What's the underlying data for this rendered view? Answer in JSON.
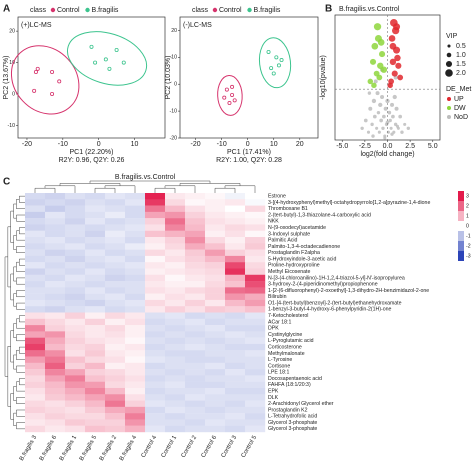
{
  "chart_data": [
    {
      "type": "scatter",
      "panel": "A",
      "legend_title": "class",
      "annotation": "(+)LC-MS",
      "xlabel": "PC1 (22.20%)",
      "ylabel": "PC2 (13.67%)",
      "note": "R2Y: 0.96, Q2Y: 0.26",
      "xlim": [
        -22.5,
        18.5
      ],
      "ylim": [
        -14,
        24.5
      ],
      "xticks": [
        -20,
        -10,
        0,
        10
      ],
      "yticks": [
        -10,
        0,
        10,
        20
      ],
      "ellipses": true,
      "series": [
        {
          "name": "Control",
          "color": "#d6336c",
          "x": [
            -17,
            -17.5,
            -13,
            -11,
            -13,
            -18
          ],
          "values": [
            8,
            7,
            7,
            4,
            0,
            1
          ]
        },
        {
          "name": "B.fragilis",
          "color": "#3cc48e",
          "x": [
            -2,
            2,
            5,
            7,
            3,
            -1
          ],
          "values": [
            15,
            11,
            14,
            10,
            8,
            10
          ]
        }
      ]
    },
    {
      "type": "scatter",
      "legend_title": "class",
      "annotation": "(-)LC-MS",
      "xlabel": "PC1 (17.41%)",
      "ylabel": "PC2 (10.03%)",
      "note": "R2Y: 1.00, Q2Y: 0.28",
      "xlim": [
        -26,
        27
      ],
      "ylim": [
        -20,
        25
      ],
      "xticks": [
        -20,
        -10,
        0,
        10,
        20
      ],
      "yticks": [
        -20,
        -10,
        0,
        10,
        20
      ],
      "ellipses": true,
      "series": [
        {
          "name": "Control",
          "color": "#d6336c",
          "x": [
            -8,
            -6,
            -7,
            -5,
            -9,
            -6
          ],
          "values": [
            -2,
            -4,
            -7,
            -6,
            -5,
            -1
          ]
        },
        {
          "name": "B.fragilis",
          "color": "#3cc48e",
          "x": [
            8,
            11,
            12,
            9,
            13,
            10
          ],
          "values": [
            12,
            10,
            7,
            6,
            9,
            4
          ]
        }
      ]
    },
    {
      "type": "volcano",
      "panel": "B",
      "title": "B.fragilis.vs.Control",
      "xlabel": "log2(fold change)",
      "ylabel": "-log10(pvalue)",
      "xlim": [
        -5.8,
        5.8
      ],
      "ylim": [
        0,
        3.2
      ],
      "xticks": [
        {
          "value": -5,
          "label": "-5.0"
        },
        -2.5,
        {
          "value": 0,
          "label": "0.0"
        },
        2.5,
        {
          "value": 5,
          "label": "5.0"
        }
      ],
      "hline": 1.3,
      "vline": 0,
      "size_title": "VIP",
      "size_legend": [
        0.5,
        {
          "value": 1,
          "label": "1.0"
        },
        1.5,
        {
          "value": 2,
          "label": "2.0"
        }
      ],
      "color_title": "DE_Met",
      "series": [
        {
          "name": "UP",
          "color": "#e0282e",
          "x": [
            0.4,
            0.6,
            0.8,
            1.0,
            1.2,
            0.5,
            0.9,
            1.4,
            0.7,
            1.1,
            0.3,
            1.0,
            0.6
          ],
          "values": [
            1.5,
            2.0,
            1.7,
            2.3,
            1.9,
            2.6,
            2.8,
            1.6,
            3.0,
            2.1,
            1.4,
            2.9,
            2.4
          ],
          "sizes": [
            1.4,
            1.6,
            1.5,
            1.8,
            1.5,
            1.7,
            1.9,
            1.4,
            2.0,
            1.6,
            1.3,
            1.8,
            1.7
          ]
        },
        {
          "name": "DW",
          "color": "#8ed63c",
          "x": [
            -1.9,
            -1.6,
            -1.4,
            -1.2,
            -1.0,
            -0.8,
            -0.6,
            -1.5,
            -0.9,
            -0.4,
            -1.1,
            -0.7
          ],
          "values": [
            1.5,
            2.0,
            2.4,
            1.7,
            2.6,
            1.9,
            2.2,
            1.4,
            1.6,
            1.8,
            2.9,
            2.5
          ],
          "sizes": [
            1.3,
            1.5,
            1.7,
            1.4,
            1.8,
            1.6,
            1.5,
            1.3,
            1.4,
            1.6,
            1.9,
            1.7
          ]
        },
        {
          "name": "NoD",
          "color": "#bdbdbd",
          "x": [
            -2.8,
            -2.4,
            -2.1,
            -1.9,
            -1.7,
            -1.5,
            -1.4,
            -1.2,
            -1.1,
            -1.0,
            -0.9,
            -0.8,
            -0.7,
            -0.6,
            -0.5,
            -0.4,
            -0.3,
            -0.2,
            -0.1,
            0.0,
            0.1,
            0.2,
            0.3,
            0.4,
            0.5,
            0.6,
            0.7,
            0.8,
            0.9,
            1.0,
            1.2,
            1.4,
            1.6,
            1.9,
            2.3,
            -1.3,
            -0.6,
            0.2,
            0.9,
            -2.0,
            -0.3,
            0.5,
            1.1,
            -1.6,
            0.0
          ],
          "values": [
            0.3,
            0.5,
            0.2,
            0.8,
            0.4,
            1.0,
            0.6,
            0.3,
            1.2,
            0.7,
            0.2,
            0.9,
            0.5,
            1.1,
            0.3,
            0.6,
            0.1,
            0.8,
            0.4,
            1.0,
            0.2,
            0.7,
            0.5,
            0.3,
            0.9,
            0.6,
            0.2,
            1.1,
            0.4,
            0.8,
            0.3,
            0.6,
            0.2,
            0.4,
            0.3,
            1.5,
            1.8,
            1.4,
            1.6,
            1.2,
            0.05,
            0.15,
            0.35,
            0.1,
            0.45
          ],
          "sizes": [
            0.6,
            0.7,
            0.5,
            0.8,
            0.6,
            0.9,
            0.7,
            0.5,
            0.8,
            0.6,
            0.5,
            0.9,
            0.7,
            0.8,
            0.6,
            0.7,
            0.5,
            0.8,
            0.6,
            0.9,
            0.5,
            0.7,
            0.6,
            0.5,
            0.8,
            0.7,
            0.5,
            0.9,
            0.6,
            0.8,
            0.5,
            0.7,
            0.6,
            0.5,
            0.6,
            0.8,
            0.9,
            0.7,
            0.8,
            0.6,
            0.5,
            0.6,
            0.5,
            0.6,
            0.7
          ]
        }
      ]
    },
    {
      "type": "heatmap",
      "panel": "C",
      "title": "B.fragilis.vs.Control",
      "colorlim": [
        -3,
        3
      ],
      "colorticks": [
        3,
        2,
        1,
        0,
        -1,
        -2,
        -3
      ],
      "colors": [
        "#2c44b8",
        "#ffffff",
        "#e31a4b"
      ],
      "columns": [
        "B.fragilis 3",
        "B.fragilis 6",
        "B.fragilis 1",
        "B.fragilis 5",
        "B.fragilis 2",
        "B.fragilis 4",
        "Control 4",
        "Control 1",
        "Control 2",
        "Control 6",
        "Control 3",
        "Control 5"
      ],
      "rows": [
        "Estrone",
        "3-[(4-hydroxyphenyl)methyl]-octahydropyrrolo[1,2-a]pyrazine-1,4-dione",
        "Thromboxane B1",
        "2-(tert-butyl)-1,3-thiazolane-4-carboxylic acid",
        "NKK",
        "N-(9-oxodecyl)acetamide",
        "3-Indoxyl sulphate",
        "Palmitic Acid",
        "Palmito-1,3-4-octadecadienone",
        "Prostaglandin F2alpha",
        "5-Hydroxyindole-3-acetic acid",
        "Proline-hydroxyproline",
        "Methyl Eicosenate",
        "N-[3-(4-chloroanilino)-1H-1,2,4-triazol-5-yl]-N'-isopropylurea",
        "3-hydroxy-2-(4-piperidinomethyl)propiophenone",
        "1-[2-(6-difluorophenyl)-2-oxoethyl]-1,3-dihydro-2H-benzimidazol-2-one",
        "Bilirubin",
        "O1-[4-(tert-butyl)benzoyl]-2-(tert-butyl)ethanehydroxamate",
        "1-benzyl-3-butyl-4-hydroxy-6-phenylpyridin-2(1H)-one",
        "7-Ketocholesterol",
        "ACar 18:1",
        "DPK",
        "Cystinylglycine",
        "L-Pyroglutamic acid",
        "Corticosterone",
        "Methylmalonate",
        "L-Tyrosine",
        "Cortisone",
        "LPE 18:1",
        "Docosapentaenoic acid",
        "FAHFA (18:1/20:3)",
        "EPK",
        "DLK",
        "2-Arachidonyl Glycerol ether",
        "Prostaglandin K2",
        "L-Tetrahydrofolic acid",
        "Glycerol 3-phosphate",
        "Glycerol 3-phosphate"
      ],
      "values": [
        [
          -0.6,
          -0.7,
          -0.5,
          -0.6,
          -0.4,
          -0.5,
          2.9,
          0.3,
          0.2,
          0.1,
          -0.2,
          0.0
        ],
        [
          -0.7,
          -0.6,
          -0.7,
          -0.5,
          -0.6,
          -0.4,
          2.6,
          0.5,
          0.1,
          0.2,
          0.3,
          -0.1
        ],
        [
          -0.5,
          -0.8,
          -0.6,
          -0.4,
          -0.5,
          -0.6,
          1.8,
          0.9,
          0.4,
          0.2,
          0.0,
          0.5
        ],
        [
          -0.8,
          -0.4,
          -0.6,
          -0.5,
          -0.3,
          -0.6,
          1.2,
          1.4,
          0.6,
          0.3,
          0.2,
          0.1
        ],
        [
          -0.6,
          -0.5,
          -0.7,
          -0.4,
          -0.6,
          -0.5,
          0.6,
          1.9,
          0.8,
          0.4,
          0.3,
          0.2
        ],
        [
          -0.7,
          -0.6,
          -0.5,
          -0.6,
          -0.5,
          -0.4,
          0.4,
          1.6,
          0.9,
          0.3,
          0.5,
          0.4
        ],
        [
          -0.4,
          -0.6,
          -0.5,
          -0.7,
          -0.3,
          -0.5,
          0.8,
          1.0,
          1.2,
          0.2,
          0.4,
          0.1
        ],
        [
          -0.5,
          -0.4,
          -0.6,
          -0.5,
          -0.4,
          -0.6,
          0.3,
          0.6,
          1.5,
          0.5,
          0.2,
          0.6
        ],
        [
          -0.6,
          -0.5,
          -0.4,
          -0.6,
          -0.5,
          -0.3,
          0.2,
          0.5,
          1.1,
          0.8,
          0.3,
          0.7
        ],
        [
          -0.5,
          -0.7,
          -0.6,
          -0.4,
          -0.6,
          -0.5,
          0.5,
          0.3,
          0.7,
          1.3,
          0.6,
          0.4
        ],
        [
          -0.6,
          -0.5,
          -0.7,
          -0.5,
          -0.4,
          -0.6,
          0.1,
          0.4,
          0.6,
          0.9,
          1.6,
          0.3
        ],
        [
          -0.4,
          -0.6,
          -0.5,
          -0.6,
          -0.5,
          -0.4,
          0.3,
          0.2,
          0.5,
          0.6,
          2.4,
          0.5
        ],
        [
          -0.7,
          -0.5,
          -0.6,
          -0.4,
          -0.6,
          -0.5,
          0.2,
          0.3,
          0.4,
          0.5,
          2.7,
          0.6
        ],
        [
          -0.5,
          -0.6,
          -0.4,
          -0.5,
          -0.7,
          -0.6,
          0.4,
          0.1,
          0.3,
          0.4,
          1.0,
          2.6
        ],
        [
          -0.6,
          -0.4,
          -0.5,
          -0.6,
          -0.5,
          -0.5,
          0.3,
          0.2,
          0.2,
          0.5,
          0.8,
          2.3
        ],
        [
          -0.5,
          -0.5,
          -0.6,
          -0.4,
          -0.6,
          -0.5,
          0.4,
          0.3,
          0.5,
          0.6,
          1.9,
          2.0
        ],
        [
          -0.5,
          -0.6,
          -0.7,
          -0.5,
          -0.4,
          -0.6,
          0.2,
          0.4,
          0.3,
          0.6,
          1.4,
          1.1
        ],
        [
          -0.4,
          -0.5,
          -0.6,
          -0.7,
          -0.5,
          -0.4,
          0.5,
          0.3,
          0.6,
          0.3,
          0.9,
          1.3
        ],
        [
          -0.6,
          -0.7,
          -0.5,
          -0.4,
          -0.6,
          -0.5,
          0.3,
          0.6,
          0.4,
          0.7,
          0.6,
          0.8
        ],
        [
          0.4,
          0.3,
          0.6,
          0.2,
          0.5,
          0.3,
          -0.5,
          -0.4,
          -0.6,
          -0.5,
          -0.6,
          -0.4
        ],
        [
          0.8,
          0.5,
          0.3,
          0.6,
          0.2,
          0.4,
          -0.6,
          -0.5,
          -0.4,
          -0.6,
          -0.5,
          -0.5
        ],
        [
          1.6,
          0.6,
          0.4,
          0.3,
          0.5,
          0.2,
          -0.5,
          -0.6,
          -0.5,
          -0.4,
          -0.6,
          -0.6
        ],
        [
          1.2,
          1.4,
          0.5,
          0.3,
          0.4,
          0.2,
          -0.6,
          -0.5,
          -0.6,
          -0.5,
          -0.4,
          -0.5
        ],
        [
          2.2,
          1.1,
          0.6,
          0.4,
          0.3,
          0.1,
          -0.5,
          -0.6,
          -0.5,
          -0.6,
          -0.5,
          -0.4
        ],
        [
          2.5,
          0.9,
          0.5,
          0.6,
          0.2,
          0.3,
          -0.6,
          -0.5,
          -0.4,
          -0.5,
          -0.6,
          -0.6
        ],
        [
          1.9,
          1.5,
          0.4,
          0.7,
          0.3,
          0.2,
          -0.5,
          -0.6,
          -0.6,
          -0.5,
          -0.5,
          -0.4
        ],
        [
          1.3,
          1.8,
          0.8,
          0.5,
          0.4,
          0.1,
          -0.4,
          -0.5,
          -0.6,
          -0.6,
          -0.5,
          -0.5
        ],
        [
          0.9,
          2.1,
          0.6,
          0.9,
          0.2,
          0.3,
          -0.6,
          -0.5,
          -0.5,
          -0.4,
          -0.6,
          -0.5
        ],
        [
          0.7,
          1.6,
          1.2,
          0.6,
          0.5,
          0.3,
          -0.5,
          -0.6,
          -0.5,
          -0.6,
          -0.4,
          -0.6
        ],
        [
          0.5,
          1.2,
          1.7,
          0.8,
          0.6,
          0.4,
          -0.6,
          -0.5,
          -0.6,
          -0.5,
          -0.5,
          -0.4
        ],
        [
          0.6,
          0.9,
          1.4,
          1.3,
          0.5,
          0.3,
          -0.5,
          -0.4,
          -0.6,
          -0.6,
          -0.5,
          -0.5
        ],
        [
          0.4,
          0.8,
          1.1,
          1.6,
          0.9,
          0.2,
          -0.6,
          -0.5,
          -0.5,
          -0.4,
          -0.6,
          -0.6
        ],
        [
          0.3,
          0.7,
          0.9,
          1.2,
          1.5,
          0.4,
          -0.5,
          -0.6,
          -0.4,
          -0.5,
          -0.5,
          -0.5
        ],
        [
          0.5,
          0.4,
          0.6,
          0.9,
          1.8,
          0.6,
          -0.4,
          -0.5,
          -0.6,
          -0.5,
          -0.6,
          -0.4
        ],
        [
          0.6,
          0.5,
          0.4,
          0.7,
          1.1,
          1.3,
          -0.6,
          -0.4,
          -0.5,
          -0.6,
          -0.5,
          -0.5
        ],
        [
          0.4,
          0.6,
          0.5,
          0.5,
          0.8,
          1.7,
          -0.5,
          -0.6,
          -0.5,
          -0.5,
          -0.4,
          -0.6
        ],
        [
          0.3,
          0.4,
          0.7,
          0.6,
          0.6,
          1.4,
          -0.5,
          -0.5,
          -0.6,
          -0.4,
          -0.5,
          -0.5
        ],
        [
          0.5,
          0.3,
          0.4,
          0.8,
          0.7,
          1.0,
          -0.4,
          -0.6,
          -0.5,
          -0.5,
          -0.6,
          -0.4
        ]
      ]
    }
  ]
}
